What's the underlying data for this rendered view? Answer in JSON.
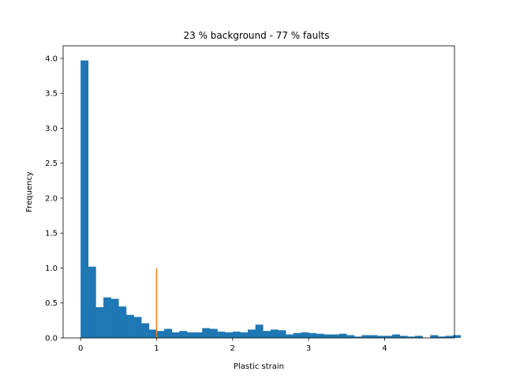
{
  "chart_data": {
    "type": "bar",
    "title": "23 % background - 77 % faults",
    "xlabel": "Plastic strain",
    "ylabel": "Frequency",
    "xlim": [
      -0.23,
      4.92
    ],
    "ylim": [
      0,
      4.18
    ],
    "xticks": [
      0,
      1,
      2,
      3,
      4
    ],
    "yticks": [
      0.0,
      0.5,
      1.0,
      1.5,
      2.0,
      2.5,
      3.0,
      3.5,
      4.0
    ],
    "ytick_labels": [
      "0.0",
      "0.5",
      "1.0",
      "1.5",
      "2.0",
      "2.5",
      "3.0",
      "3.5",
      "4.0"
    ],
    "grid": false,
    "series": [
      {
        "type": "histogram",
        "color": "#1f77b4",
        "bin_start": 0.0,
        "bin_width": 0.1,
        "values": [
          3.97,
          1.02,
          0.44,
          0.58,
          0.56,
          0.45,
          0.33,
          0.3,
          0.21,
          0.12,
          0.1,
          0.13,
          0.08,
          0.1,
          0.08,
          0.08,
          0.14,
          0.13,
          0.09,
          0.08,
          0.09,
          0.08,
          0.12,
          0.19,
          0.1,
          0.12,
          0.11,
          0.05,
          0.07,
          0.08,
          0.07,
          0.06,
          0.05,
          0.05,
          0.06,
          0.04,
          0.02,
          0.04,
          0.04,
          0.03,
          0.03,
          0.05,
          0.03,
          0.02,
          0.03,
          0.0,
          0.04,
          0.02,
          0.03,
          0.04
        ]
      },
      {
        "type": "vertical-line",
        "color": "#ff7f0e",
        "x": 1.0,
        "y_range": [
          0,
          1.0
        ]
      }
    ]
  }
}
